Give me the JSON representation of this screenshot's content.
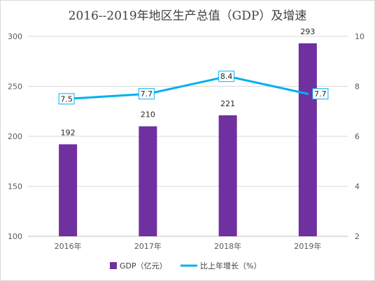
{
  "chart_data": {
    "type": "bar",
    "title": "2016--2019年地区生产总值（GDP）及增速",
    "categories": [
      "2016年",
      "2017年",
      "2018年",
      "2019年"
    ],
    "series": [
      {
        "name": "GDP（亿元）",
        "type": "bar",
        "axis": "left",
        "color": "#7030a0",
        "values": [
          192,
          210,
          221,
          293
        ],
        "labels": [
          "192",
          "210",
          "221",
          "293"
        ]
      },
      {
        "name": "比上年增长（%）",
        "type": "line",
        "axis": "right",
        "color": "#00b0f0",
        "values": [
          7.5,
          7.7,
          8.4,
          7.7
        ],
        "labels": [
          "7.5",
          "7.7",
          "8.4",
          "7.7"
        ]
      }
    ],
    "y_left": {
      "min": 100,
      "max": 300,
      "ticks": [
        "100",
        "150",
        "200",
        "250",
        "300"
      ]
    },
    "y_right": {
      "min": 2,
      "max": 10,
      "ticks": [
        "2",
        "4",
        "6",
        "8",
        "10"
      ]
    },
    "xlabel": "",
    "ylabel": "",
    "grid": true,
    "legend": "bottom"
  }
}
